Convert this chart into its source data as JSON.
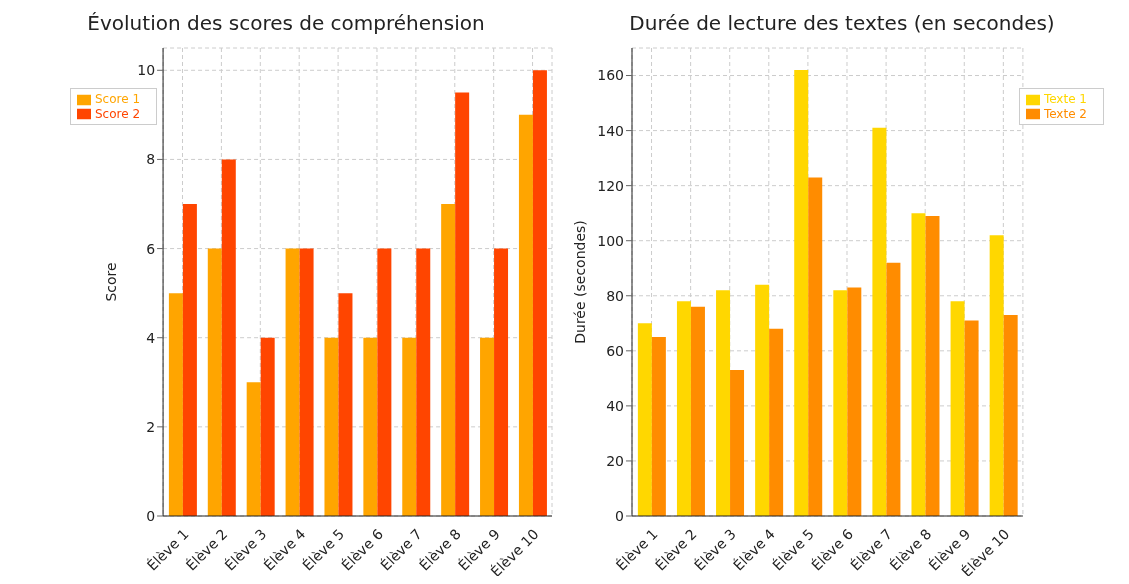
{
  "chart_data": [
    {
      "type": "bar",
      "title": "Évolution des scores de compréhension",
      "ylabel": "Score",
      "categories": [
        "Élève 1",
        "Élève 2",
        "Élève 3",
        "Élève 4",
        "Élève 5",
        "Élève 6",
        "Élève 7",
        "Élève 8",
        "Élève 9",
        "Élève 10"
      ],
      "series": [
        {
          "name": "Score 1",
          "color": "#ffa500",
          "values": [
            5,
            6,
            3,
            6,
            4,
            4,
            4,
            7,
            4,
            9
          ]
        },
        {
          "name": "Score 2",
          "color": "#ff4500",
          "values": [
            7,
            8,
            4,
            6,
            5,
            6,
            6,
            9.5,
            6,
            10
          ]
        }
      ],
      "ylim": [
        0,
        10.5
      ],
      "yticks": [
        0,
        2,
        4,
        6,
        8,
        10
      ],
      "grid": true,
      "legend": "top left"
    },
    {
      "type": "bar",
      "title": "Durée de lecture des textes (en secondes)",
      "ylabel": "Durée (secondes)",
      "categories": [
        "Élève 1",
        "Élève 2",
        "Élève 3",
        "Élève 4",
        "Élève 5",
        "Élève 6",
        "Élève 7",
        "Élève 8",
        "Élève 9",
        "Élève 10"
      ],
      "series": [
        {
          "name": "Texte 1",
          "color": "#ffd700",
          "values": [
            70,
            78,
            82,
            84,
            162,
            82,
            141,
            110,
            78,
            102
          ]
        },
        {
          "name": "Texte 2",
          "color": "#ff8c00",
          "values": [
            65,
            76,
            53,
            68,
            123,
            83,
            92,
            109,
            71,
            73
          ]
        }
      ],
      "ylim": [
        0,
        170
      ],
      "yticks": [
        0,
        20,
        40,
        60,
        80,
        100,
        120,
        140,
        160
      ],
      "grid": true,
      "legend": "top right"
    }
  ]
}
